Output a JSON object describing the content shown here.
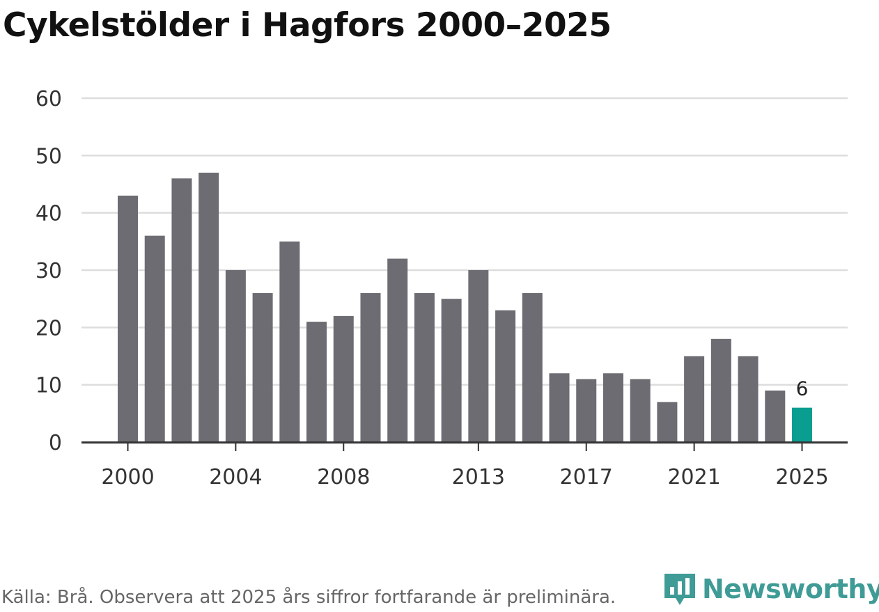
{
  "title": "Cykelstölder i Hagfors 2000–2025",
  "source": "Källa: Brå. Observera att 2025 års siffror fortfarande är preliminära.",
  "brand": {
    "name": "Newsworthy",
    "icon": "newsworthy-logo-icon",
    "color": "#3f9b96"
  },
  "chart_data": {
    "type": "bar",
    "title": "Cykelstölder i Hagfors 2000–2025",
    "xlabel": "",
    "ylabel": "",
    "categories": [
      "2000",
      "2001",
      "2002",
      "2003",
      "2004",
      "2005",
      "2006",
      "2007",
      "2008",
      "2009",
      "2010",
      "2011",
      "2012",
      "2013",
      "2014",
      "2015",
      "2016",
      "2017",
      "2018",
      "2019",
      "2020",
      "2021",
      "2022",
      "2023",
      "2024",
      "2025"
    ],
    "values": [
      43,
      36,
      46,
      47,
      30,
      26,
      35,
      21,
      22,
      26,
      32,
      26,
      25,
      30,
      23,
      26,
      12,
      11,
      12,
      11,
      7,
      15,
      18,
      15,
      9,
      6
    ],
    "ylim": [
      0,
      60
    ],
    "yticks": [
      0,
      10,
      20,
      30,
      40,
      50,
      60
    ],
    "xtick_labels": [
      "2000",
      "2004",
      "2008",
      "2013",
      "2017",
      "2021",
      "2025"
    ],
    "highlight_category": "2025",
    "highlight_label": "6",
    "grid": true,
    "colors": {
      "bar": "#6d6c72",
      "highlight": "#0a9e91",
      "grid": "#dddddd",
      "axis": "#333333"
    }
  }
}
